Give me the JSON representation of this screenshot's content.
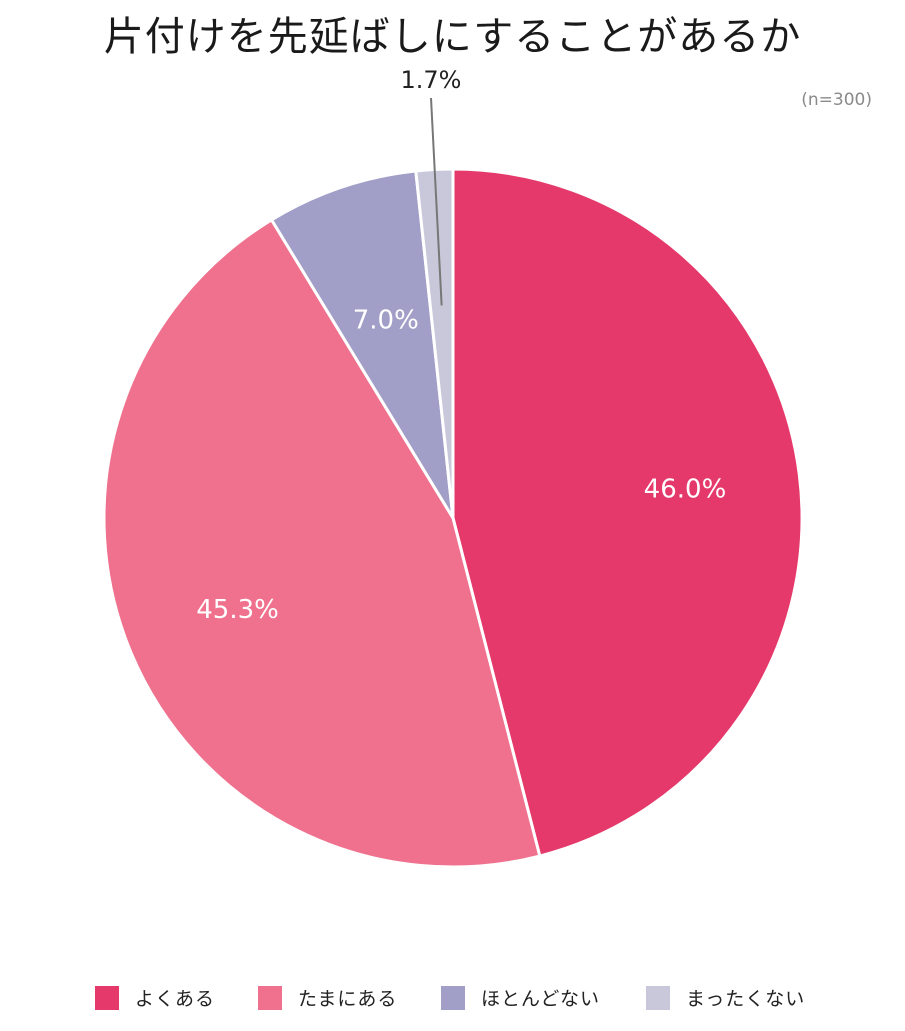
{
  "chart_data": {
    "type": "pie",
    "title": "片付けを先延ばしにすることがあるか",
    "subtitle": "(n=300)",
    "slices": [
      {
        "label": "よくある",
        "value": 46.0,
        "value_label": "46.0%",
        "color": "#e5396b"
      },
      {
        "label": "たまにある",
        "value": 45.3,
        "value_label": "45.3%",
        "color": "#ef718e"
      },
      {
        "label": "ほとんどない",
        "value": 7.0,
        "value_label": "7.0%",
        "color": "#a19fc7"
      },
      {
        "label": "まったくない",
        "value": 1.7,
        "value_label": "1.7%",
        "color": "#c9c8da"
      }
    ],
    "start": "12 o'clock",
    "direction": "clockwise",
    "legend_position": "bottom"
  }
}
